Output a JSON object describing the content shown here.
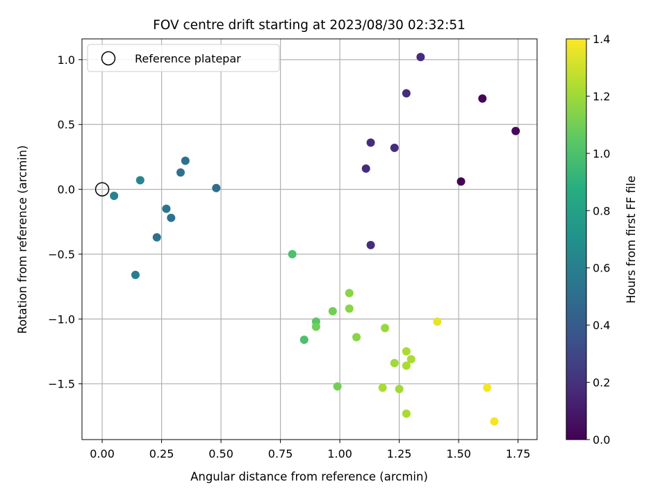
{
  "chart_data": {
    "type": "scatter",
    "title": "FOV centre drift starting at 2023/08/30 02:32:51",
    "xlabel": "Angular distance from reference (arcmin)",
    "ylabel": "Rotation from reference (arcmin)",
    "xlim": [
      -0.085,
      1.83
    ],
    "ylim": [
      -1.93,
      1.16
    ],
    "xticks": [
      0.0,
      0.25,
      0.5,
      0.75,
      1.0,
      1.25,
      1.5,
      1.75
    ],
    "xtick_labels": [
      "0.00",
      "0.25",
      "0.50",
      "0.75",
      "1.00",
      "1.25",
      "1.50",
      "1.75"
    ],
    "yticks": [
      1.0,
      0.5,
      0.0,
      -0.5,
      -1.0,
      -1.5
    ],
    "ytick_labels": [
      "1.0",
      "0.5",
      "0.0",
      "−0.5",
      "−1.0",
      "−1.5"
    ],
    "grid": true,
    "legend": {
      "placement": "upper-left",
      "entries": [
        "Reference platepar"
      ]
    },
    "reference_point": {
      "x": 0.0,
      "y": 0.0
    },
    "colorbar": {
      "label": "Hours from first FF file",
      "range": [
        0.0,
        1.4
      ],
      "ticks": [
        0.0,
        0.2,
        0.4,
        0.6,
        0.8,
        1.0,
        1.2,
        1.4
      ],
      "tick_labels": [
        "0.0",
        "0.2",
        "0.4",
        "0.6",
        "0.8",
        "1.0",
        "1.2",
        "1.4"
      ],
      "colormap": "viridis"
    },
    "points": [
      {
        "x": 1.51,
        "y": 0.06,
        "c": 0.0
      },
      {
        "x": 1.6,
        "y": 0.7,
        "c": 0.02
      },
      {
        "x": 1.74,
        "y": 0.45,
        "c": 0.03
      },
      {
        "x": 1.34,
        "y": 1.02,
        "c": 0.18
      },
      {
        "x": 1.28,
        "y": 0.74,
        "c": 0.18
      },
      {
        "x": 1.13,
        "y": 0.36,
        "c": 0.18
      },
      {
        "x": 1.23,
        "y": 0.32,
        "c": 0.18
      },
      {
        "x": 1.11,
        "y": 0.16,
        "c": 0.18
      },
      {
        "x": 1.13,
        "y": -0.43,
        "c": 0.18
      },
      {
        "x": 0.48,
        "y": 0.01,
        "c": 0.5
      },
      {
        "x": 0.35,
        "y": 0.22,
        "c": 0.52
      },
      {
        "x": 0.33,
        "y": 0.13,
        "c": 0.52
      },
      {
        "x": 0.29,
        "y": -0.22,
        "c": 0.52
      },
      {
        "x": 0.27,
        "y": -0.15,
        "c": 0.55
      },
      {
        "x": 0.23,
        "y": -0.37,
        "c": 0.52
      },
      {
        "x": 0.16,
        "y": 0.07,
        "c": 0.65
      },
      {
        "x": 0.05,
        "y": -0.05,
        "c": 0.62
      },
      {
        "x": 0.14,
        "y": -0.66,
        "c": 0.6
      },
      {
        "x": 0.8,
        "y": -0.5,
        "c": 1.0
      },
      {
        "x": 0.85,
        "y": -1.16,
        "c": 1.0
      },
      {
        "x": 0.9,
        "y": -1.02,
        "c": 1.03
      },
      {
        "x": 0.9,
        "y": -1.06,
        "c": 1.1
      },
      {
        "x": 0.97,
        "y": -0.94,
        "c": 1.1
      },
      {
        "x": 0.99,
        "y": -1.52,
        "c": 1.1
      },
      {
        "x": 1.04,
        "y": -0.8,
        "c": 1.15
      },
      {
        "x": 1.04,
        "y": -0.92,
        "c": 1.15
      },
      {
        "x": 1.07,
        "y": -1.14,
        "c": 1.15
      },
      {
        "x": 1.19,
        "y": -1.07,
        "c": 1.18
      },
      {
        "x": 1.18,
        "y": -1.53,
        "c": 1.22
      },
      {
        "x": 1.25,
        "y": -1.54,
        "c": 1.2
      },
      {
        "x": 1.23,
        "y": -1.34,
        "c": 1.2
      },
      {
        "x": 1.28,
        "y": -1.25,
        "c": 1.22
      },
      {
        "x": 1.28,
        "y": -1.36,
        "c": 1.22
      },
      {
        "x": 1.3,
        "y": -1.31,
        "c": 1.22
      },
      {
        "x": 1.28,
        "y": -1.73,
        "c": 1.22
      },
      {
        "x": 1.41,
        "y": -1.02,
        "c": 1.35
      },
      {
        "x": 1.62,
        "y": -1.53,
        "c": 1.38
      },
      {
        "x": 1.65,
        "y": -1.79,
        "c": 1.38
      }
    ]
  }
}
